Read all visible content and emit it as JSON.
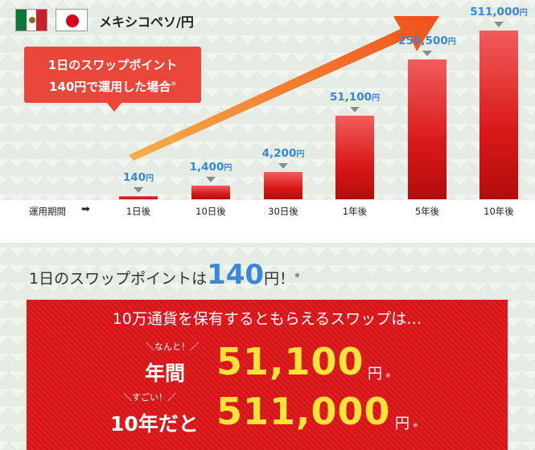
{
  "header": {
    "pair_title": "メキシコペソ/円",
    "flags": [
      "mexico-flag",
      "japan-flag"
    ]
  },
  "callout": {
    "line1": "1日のスワップポイント",
    "line2": "140円で運用した場合",
    "note": "※"
  },
  "chart_data": {
    "type": "bar",
    "categories": [
      "1日後",
      "10日後",
      "30日後",
      "1年後",
      "5年後",
      "10年後"
    ],
    "values": [
      140,
      1400,
      4200,
      51100,
      255500,
      511000
    ],
    "value_labels": [
      "140",
      "1,400",
      "4,200",
      "51,100",
      "255,500",
      "511,000"
    ],
    "unit": "円",
    "xlabel": "運用期間",
    "colors": {
      "bar": "#d91818",
      "value": "#3a87d6",
      "arrow": "#f06a1a"
    }
  },
  "headline": {
    "prefix": "1日のスワップポイントは",
    "value": "140",
    "suffix": "円！",
    "note": "※"
  },
  "box": {
    "top_text": "10万通貨を保有するともらえるスワップは…",
    "row1": {
      "tag": "＼なんと！／",
      "prefix": "年間",
      "amount": "51,100",
      "unit": "円",
      "note": "※"
    },
    "row2": {
      "tag": "＼すごい！／",
      "prefix": "10年だと",
      "amount": "511,000",
      "unit": "円",
      "note": "※"
    }
  }
}
